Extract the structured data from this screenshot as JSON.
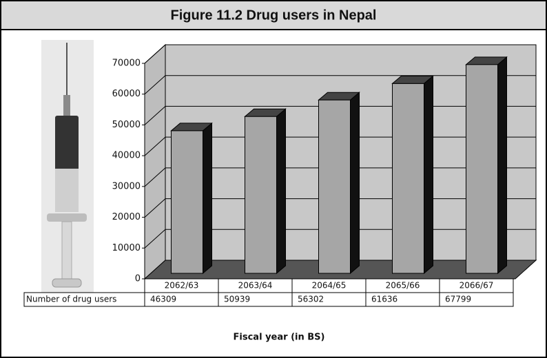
{
  "chart_data": {
    "type": "bar3d",
    "title": "Figure 11.2 Drug users in Nepal",
    "categories": [
      "2062/63",
      "2063/64",
      "2064/65",
      "2065/66",
      "2066/67"
    ],
    "series": [
      {
        "name": "Number of drug users",
        "color": "#a6a6a6",
        "values": [
          46309,
          50939,
          56302,
          61636,
          67799
        ]
      }
    ],
    "x_label": "Fiscal year (in BS)",
    "ylim": [
      0,
      70000
    ],
    "yticks": [
      0,
      10000,
      20000,
      30000,
      40000,
      50000,
      60000,
      70000
    ],
    "grid": true
  }
}
